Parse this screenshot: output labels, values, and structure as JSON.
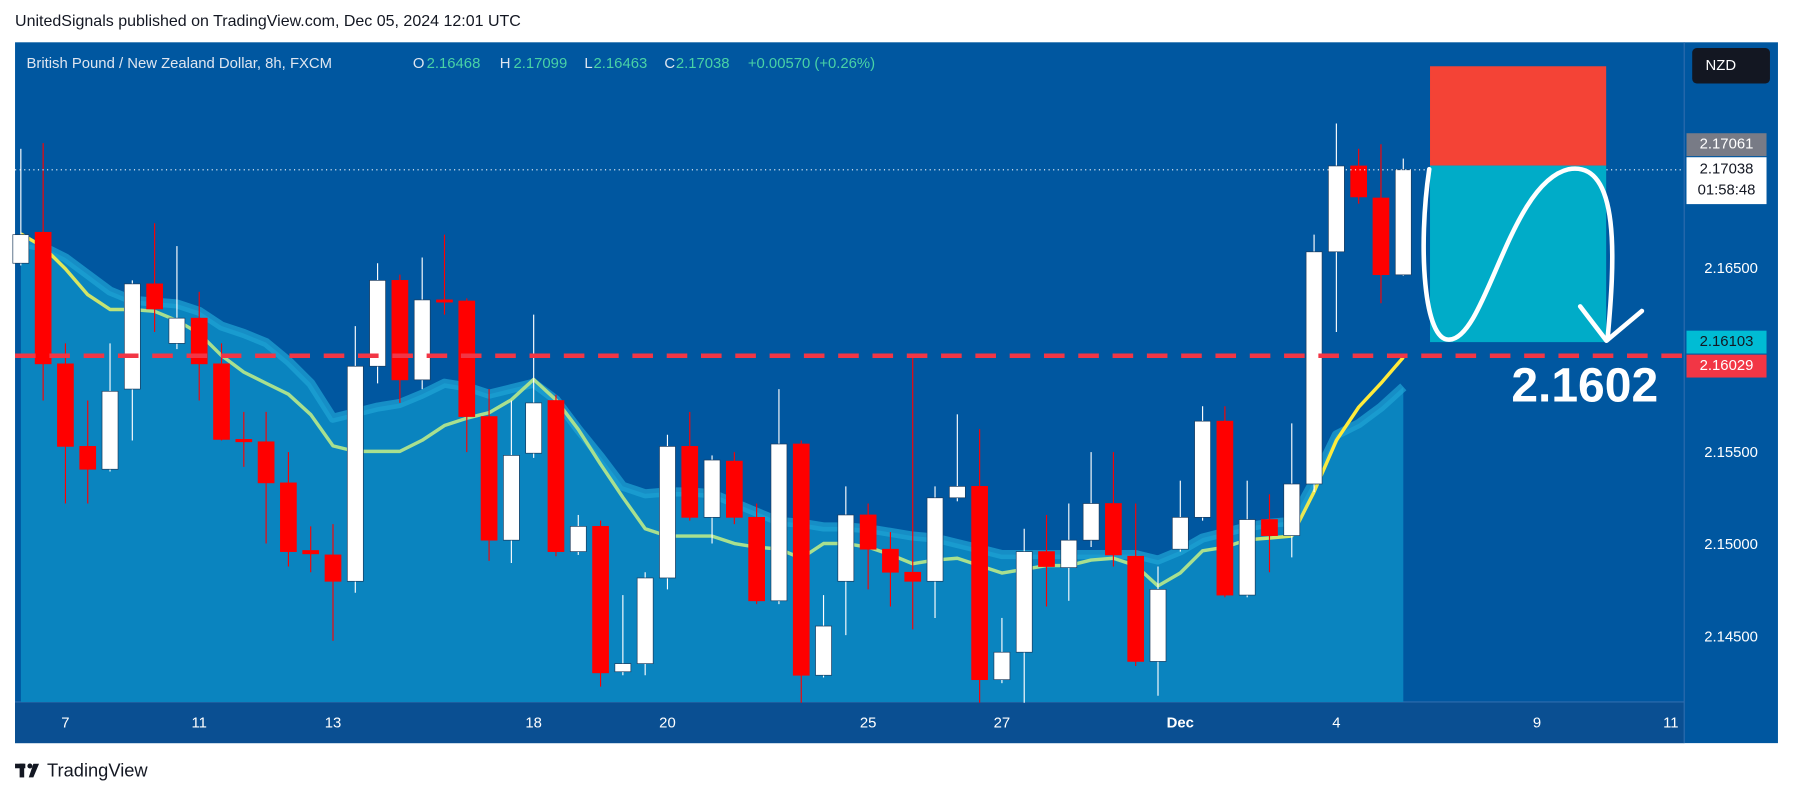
{
  "header": {
    "text": "UnitedSignals published on TradingView.com, Dec 05, 2024 12:01 UTC"
  },
  "footer": {
    "brand": "TradingView"
  },
  "chart_data": {
    "type": "candlestick",
    "symbol": "British Pound / New Zealand Dollar, 8h, FXCM",
    "ohlc_labels": [
      "O",
      "H",
      "L",
      "C"
    ],
    "change": "+0.00570 (+0.26%)",
    "currency": "NZD",
    "up_color": "#ffffff",
    "down_color": "#ff0000",
    "open": [
      2.16531,
      2.16699,
      2.15985,
      2.15537,
      2.15413,
      2.15848,
      2.16419,
      2.16096,
      2.16233,
      2.15985,
      2.15575,
      2.15562,
      2.15339,
      2.14972,
      2.14948,
      2.14805,
      2.15972,
      2.16438,
      2.15898,
      2.16332,
      2.16326,
      2.15699,
      2.15028,
      2.155,
      2.15786,
      2.14966,
      2.15103,
      2.14314,
      2.14358,
      2.14823,
      2.15537,
      2.15152,
      2.15457,
      2.15152,
      2.14699,
      2.1555,
      2.14295,
      2.14805,
      2.15165,
      2.14979,
      2.14854,
      2.14805,
      2.15258,
      2.1532,
      2.14271,
      2.1442,
      2.14966,
      2.14879,
      2.15028,
      2.15227,
      2.14941,
      2.1437,
      2.14979,
      2.15152,
      2.15674,
      2.1473,
      2.1514,
      2.15053,
      2.15333,
      2.16593,
      2.17059,
      2.16885,
      2.16468
    ],
    "high": [
      2.17152,
      2.17183,
      2.16096,
      2.15786,
      2.16096,
      2.16438,
      2.16748,
      2.16624,
      2.16376,
      2.16096,
      2.15724,
      2.15724,
      2.15506,
      2.15103,
      2.15115,
      2.1619,
      2.16531,
      2.16469,
      2.16562,
      2.16686,
      2.1634,
      2.15848,
      2.15786,
      2.16252,
      2.15817,
      2.15165,
      2.15134,
      2.1473,
      2.14854,
      2.156,
      2.15724,
      2.15488,
      2.15506,
      2.15227,
      2.15848,
      2.15569,
      2.1473,
      2.1532,
      2.15227,
      2.15072,
      2.16034,
      2.1532,
      2.15711,
      2.15631,
      2.14606,
      2.1509,
      2.15165,
      2.15227,
      2.15506,
      2.15506,
      2.15227,
      2.14885,
      2.15351,
      2.15755,
      2.15755,
      2.15351,
      2.15277,
      2.15662,
      2.16686,
      2.17289,
      2.17152,
      2.17177,
      2.17099
    ],
    "low": [
      2.16519,
      2.15786,
      2.15227,
      2.15227,
      2.15401,
      2.15569,
      2.16158,
      2.16065,
      2.15786,
      2.15569,
      2.15426,
      2.1501,
      2.14885,
      2.14854,
      2.14482,
      2.14743,
      2.15879,
      2.15773,
      2.15848,
      2.16252,
      2.15506,
      2.14916,
      2.14904,
      2.15475,
      2.14941,
      2.14948,
      2.14233,
      2.14295,
      2.14295,
      2.14761,
      2.15134,
      2.1501,
      2.15115,
      2.14681,
      2.14681,
      2.14146,
      2.14283,
      2.14513,
      2.14761,
      2.14668,
      2.14544,
      2.14606,
      2.15239,
      2.14146,
      2.14252,
      2.14146,
      2.14668,
      2.14699,
      2.14991,
      2.14885,
      2.14345,
      2.14184,
      2.14966,
      2.15134,
      2.14718,
      2.14718,
      2.14854,
      2.14935,
      2.15289,
      2.16158,
      2.16854,
      2.16314,
      2.16463
    ],
    "close": [
      2.16686,
      2.15985,
      2.15537,
      2.15413,
      2.15836,
      2.16419,
      2.16283,
      2.16233,
      2.15985,
      2.15575,
      2.15562,
      2.15339,
      2.14966,
      2.14954,
      2.14805,
      2.15972,
      2.16438,
      2.15898,
      2.16332,
      2.1632,
      2.15699,
      2.15028,
      2.15488,
      2.15773,
      2.14966,
      2.15103,
      2.14308,
      2.14358,
      2.14823,
      2.15537,
      2.15152,
      2.15463,
      2.15152,
      2.14699,
      2.1555,
      2.14295,
      2.14562,
      2.15165,
      2.14979,
      2.14854,
      2.14805,
      2.15258,
      2.1532,
      2.14271,
      2.1442,
      2.14966,
      2.14885,
      2.15028,
      2.15227,
      2.14948,
      2.1437,
      2.14761,
      2.15152,
      2.15674,
      2.1473,
      2.1514,
      2.15053,
      2.15333,
      2.16593,
      2.17059,
      2.16891,
      2.16469,
      2.17038
    ],
    "series": [
      {
        "type": "area",
        "color": "#0a84bf",
        "edge_color": "#1fa5d6",
        "values": [
          2.1664,
          2.1662,
          2.1656,
          2.1647,
          2.1638,
          2.1633,
          2.1632,
          2.1631,
          2.1627,
          2.1619,
          2.1615,
          2.161,
          2.16,
          2.1588,
          2.1569,
          2.1572,
          2.1575,
          2.1577,
          2.1582,
          2.1588,
          2.1586,
          2.1582,
          2.1585,
          2.1588,
          2.1579,
          2.1563,
          2.1548,
          2.1532,
          2.1528,
          2.1529,
          2.1529,
          2.1528,
          2.1523,
          2.1518,
          2.1513,
          2.1512,
          2.151,
          2.151,
          2.1509,
          2.1507,
          2.1505,
          2.1504,
          2.1501,
          2.1498,
          2.1495,
          2.1495,
          2.1495,
          2.1495,
          2.1495,
          2.1495,
          2.1495,
          2.1492,
          2.1497,
          2.1504,
          2.1507,
          2.151,
          2.1512,
          2.1513,
          2.1535,
          2.156,
          2.1566,
          2.1575,
          2.1586
        ]
      },
      {
        "type": "line",
        "color": "#ffeb3b",
        "mid_color": "#a8e08f",
        "values": [
          2.1669,
          2.1662,
          2.165,
          2.1636,
          2.1628,
          2.1628,
          2.1627,
          2.1622,
          2.1615,
          2.1603,
          2.1594,
          2.1588,
          2.1582,
          2.1571,
          2.1554,
          2.1551,
          2.1551,
          2.1551,
          2.1557,
          2.1565,
          2.1569,
          2.1572,
          2.1579,
          2.159,
          2.1579,
          2.1563,
          2.1544,
          2.1526,
          2.1509,
          2.1505,
          2.1505,
          2.1505,
          2.1501,
          2.1499,
          2.1498,
          2.1493,
          2.1501,
          2.1501,
          2.1499,
          2.1495,
          2.149,
          2.1492,
          2.1493,
          2.1489,
          2.1485,
          2.1487,
          2.1489,
          2.1489,
          2.1492,
          2.1493,
          2.1489,
          2.1478,
          2.1485,
          2.1497,
          2.1499,
          2.1503,
          2.1504,
          2.1505,
          2.1529,
          2.1557,
          2.1575,
          2.1588,
          2.1602
        ]
      }
    ],
    "position": {
      "stop": 2.176,
      "entry": 2.17061,
      "target": 2.16103,
      "start": 63.2,
      "end": 71.1,
      "stop_color": "#f44336",
      "target_color": "#00acc8",
      "entry_label_color": "#787b86",
      "target_label_color": "#00bcd4"
    },
    "countdown": "01:58:48",
    "level": {
      "value": 2.16029,
      "color": "#f23645"
    },
    "annotation": "2.1602",
    "xlim": [
      -0.26,
      74.6
    ],
    "ylim": [
      2.1415,
      2.1773
    ],
    "xticks": [
      {
        "value": 2,
        "label": "7"
      },
      {
        "value": 8,
        "label": "11"
      },
      {
        "value": 14,
        "label": "13"
      },
      {
        "value": 23,
        "label": "18"
      },
      {
        "value": 29,
        "label": "20"
      },
      {
        "value": 38,
        "label": "25"
      },
      {
        "value": 44,
        "label": "27"
      },
      {
        "value": 52,
        "label": "Dec",
        "bold": true
      },
      {
        "value": 59,
        "label": "4"
      },
      {
        "value": 68,
        "label": "9"
      },
      {
        "value": 74,
        "label": "11"
      }
    ],
    "yticks": [
      {
        "value": 2.165,
        "label": "2.16500"
      },
      {
        "value": 2.155,
        "label": "2.15500"
      },
      {
        "value": 2.15,
        "label": "2.15000"
      },
      {
        "value": 2.145,
        "label": "2.14500"
      }
    ],
    "grid": false
  }
}
